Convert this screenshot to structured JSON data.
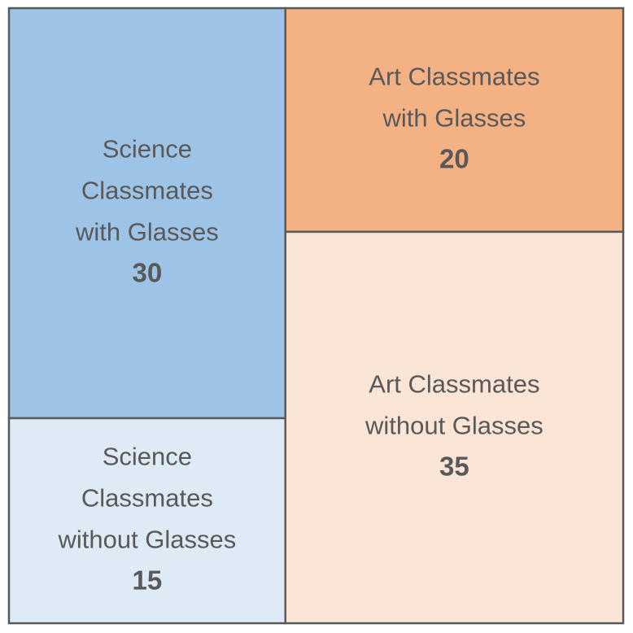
{
  "chart_data": {
    "type": "mosaic",
    "title": "",
    "cells": [
      {
        "group": "Science",
        "label_lines": [
          "Science",
          "Classmates",
          "with Glasses"
        ],
        "value": 30,
        "color": "#9DC3E6"
      },
      {
        "group": "Science",
        "label_lines": [
          "Science",
          "Classmates",
          "without Glasses"
        ],
        "value": 15,
        "color": "#DEEBF7"
      },
      {
        "group": "Art",
        "label_lines": [
          "Art Classmates",
          "with Glasses"
        ],
        "value": 20,
        "color": "#F4B183"
      },
      {
        "group": "Art",
        "label_lines": [
          "Art Classmates",
          "without Glasses"
        ],
        "value": 35,
        "color": "#FBE5D6"
      }
    ],
    "border_color": "#595959"
  }
}
